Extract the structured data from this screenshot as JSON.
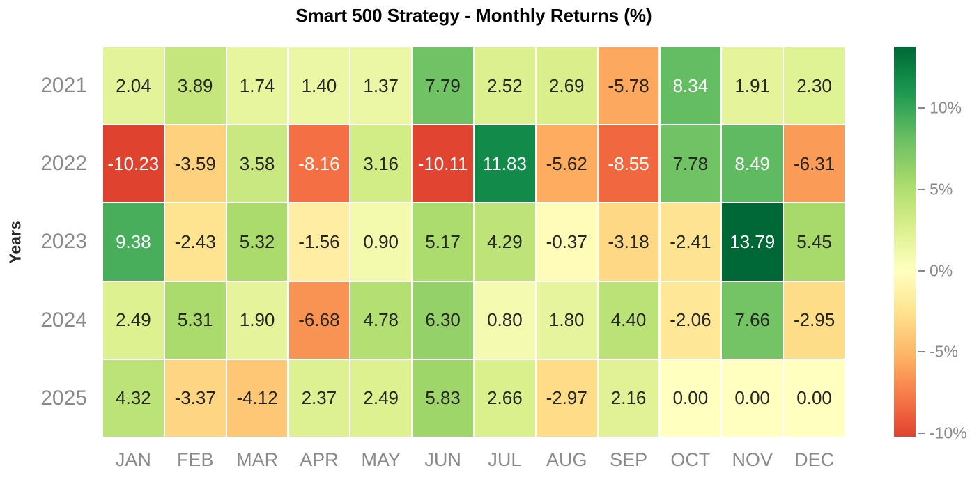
{
  "chart_data": {
    "type": "heatmap",
    "title": "Smart 500 Strategy - Monthly Returns (%)",
    "ylabel": "Years",
    "rows": [
      "2021",
      "2022",
      "2023",
      "2024",
      "2025"
    ],
    "columns": [
      "JAN",
      "FEB",
      "MAR",
      "APR",
      "MAY",
      "JUN",
      "JUL",
      "AUG",
      "SEP",
      "OCT",
      "NOV",
      "DEC"
    ],
    "values": [
      [
        2.04,
        3.89,
        1.74,
        1.4,
        1.37,
        7.79,
        2.52,
        2.69,
        -5.78,
        8.34,
        1.91,
        2.3
      ],
      [
        -10.23,
        -3.59,
        3.58,
        -8.16,
        3.16,
        -10.11,
        11.83,
        -5.62,
        -8.55,
        7.78,
        8.49,
        -6.31
      ],
      [
        9.38,
        -2.43,
        5.32,
        -1.56,
        0.9,
        5.17,
        4.29,
        -0.37,
        -3.18,
        -2.41,
        13.79,
        5.45
      ],
      [
        2.49,
        5.31,
        1.9,
        -6.68,
        4.78,
        6.3,
        0.8,
        1.8,
        4.4,
        -2.06,
        7.66,
        -2.95
      ],
      [
        4.32,
        -3.37,
        -4.12,
        2.37,
        2.49,
        5.83,
        2.66,
        -2.97,
        2.16,
        0.0,
        0.0,
        0.0
      ]
    ],
    "value_decimals": 2,
    "colormap": {
      "name": "RdYlGn",
      "stops": [
        "#a50026",
        "#d73027",
        "#f46d43",
        "#fdae61",
        "#fee08b",
        "#ffffbf",
        "#d9ef8b",
        "#a6d96a",
        "#66bd63",
        "#1a9850",
        "#006837"
      ],
      "norm": {
        "type": "symmetric-about-zero",
        "limit": 13.79
      }
    },
    "colorbar": {
      "display_max": 13.79,
      "display_min": -10.23,
      "tick_values": [
        10,
        5,
        0,
        -5,
        -10
      ],
      "tick_labels": [
        "10%",
        "5%",
        "0%",
        "-5%",
        "-10%"
      ]
    },
    "legend_position": "right",
    "grid": false,
    "colors": {
      "title": "#000000",
      "axis_label": "#262626",
      "tick_label": "#8a8a8a",
      "annot_dark": "#262626",
      "annot_light": "#ffffff",
      "cell_gap": "#ffffff",
      "background": "#ffffff"
    }
  }
}
